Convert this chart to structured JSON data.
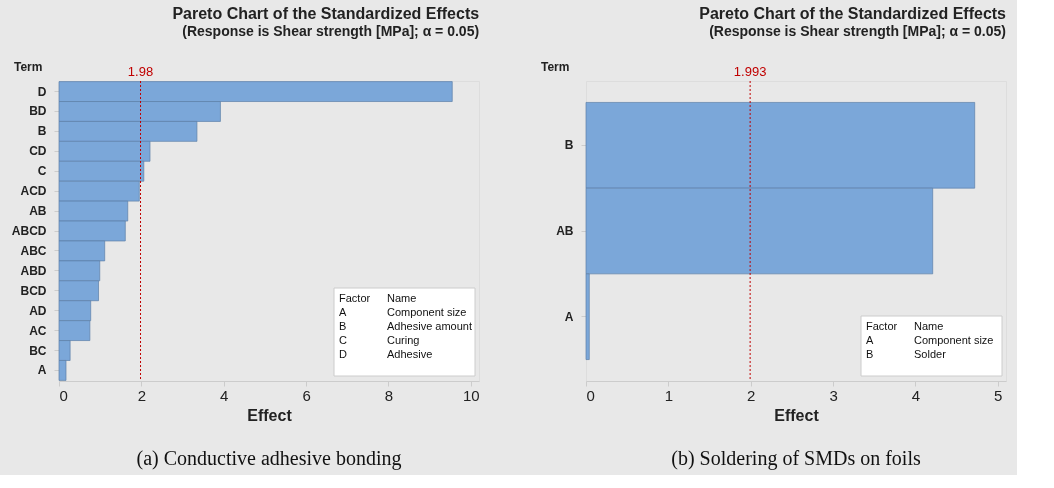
{
  "chart_data": [
    {
      "type": "bar",
      "orientation": "horizontal",
      "title": "Pareto Chart of the Standardized Effects",
      "subtitle": "(Response is Shear strength [MPa]; α = 0.05)",
      "xlabel": "Effect",
      "ylabel": "Term",
      "categories": [
        "D",
        "BD",
        "B",
        "CD",
        "C",
        "ACD",
        "AB",
        "ABCD",
        "ABC",
        "ABD",
        "BCD",
        "AD",
        "AC",
        "BC",
        "A"
      ],
      "values": [
        9.55,
        3.92,
        3.35,
        2.21,
        2.06,
        1.95,
        1.67,
        1.61,
        1.11,
        0.99,
        0.96,
        0.77,
        0.75,
        0.27,
        0.17
      ],
      "color": "#7ba7d9",
      "xlim": [
        0,
        10.2
      ],
      "xticks": [
        0,
        2,
        4,
        6,
        8,
        10
      ],
      "grid": false,
      "ref_lines": [
        {
          "axis": "x",
          "value": 1.98,
          "label": "1.98",
          "color": "#c00000",
          "line_style": "dotted"
        }
      ],
      "annotations": [
        "(a) Conductive adhesive bonding",
        "Factor",
        "Name",
        "A",
        "Component size",
        "B",
        "Adhesive amount",
        "C",
        "Curing",
        "D",
        "Adhesive"
      ]
    },
    {
      "type": "bar",
      "orientation": "horizontal",
      "title": "Pareto Chart of the Standardized Effects",
      "subtitle": "(Response is Shear strength [MPa]; α = 0.05)",
      "xlabel": "Effect",
      "ylabel": "Term",
      "categories": [
        "B",
        "AB",
        "A"
      ],
      "values": [
        4.72,
        4.21,
        0.04
      ],
      "color": "#7ba7d9",
      "xlim": [
        0,
        5.1
      ],
      "xticks": [
        0,
        1,
        2,
        3,
        4,
        5
      ],
      "grid": false,
      "ref_lines": [
        {
          "axis": "x",
          "value": 1.993,
          "label": "1.993",
          "color": "#c00000",
          "line_style": "dotted"
        }
      ],
      "annotations": [
        "(b) Soldering of SMDs on foils",
        "Factor",
        "Name",
        "A",
        "Component size",
        "B",
        "Solder"
      ]
    }
  ]
}
